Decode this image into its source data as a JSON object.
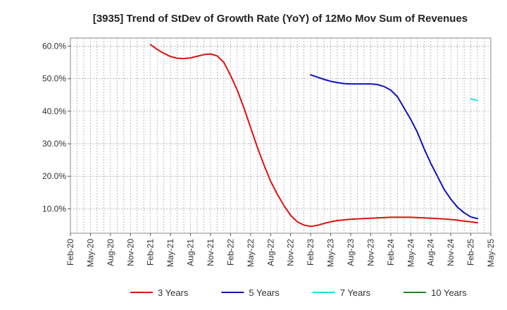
{
  "chart_data": {
    "type": "line",
    "title": "[3935]  Trend of StDev of Growth Rate (YoY) of 12Mo Mov Sum of Revenues",
    "xlabel": "",
    "ylabel": "",
    "ylim": [
      2.5,
      62.5
    ],
    "yticks": [
      10,
      20,
      30,
      40,
      50,
      60
    ],
    "ytick_labels": [
      "10.0%",
      "20.0%",
      "30.0%",
      "40.0%",
      "50.0%",
      "60.0%"
    ],
    "x_tick_labels": [
      "Feb-20",
      "May-20",
      "Aug-20",
      "Nov-20",
      "Feb-21",
      "May-21",
      "Aug-21",
      "Nov-21",
      "Feb-22",
      "May-22",
      "Aug-22",
      "Nov-22",
      "Feb-23",
      "May-23",
      "Aug-23",
      "Nov-23",
      "Feb-24",
      "May-24",
      "Aug-24",
      "Nov-24",
      "Feb-25",
      "May-25"
    ],
    "grid": true,
    "legend_position": "bottom",
    "series": [
      {
        "name": "3 Years",
        "color": "#dd1111",
        "start_month_index": 12,
        "values": [
          60.5,
          59.0,
          57.8,
          56.8,
          56.3,
          56.2,
          56.4,
          56.9,
          57.4,
          57.6,
          57.0,
          55.0,
          51.0,
          46.5,
          41.0,
          35.0,
          29.0,
          23.5,
          18.5,
          14.5,
          11.0,
          8.0,
          6.0,
          5.0,
          4.6,
          4.9,
          5.5,
          6.0,
          6.4,
          6.6,
          6.8,
          6.9,
          7.0,
          7.1,
          7.2,
          7.3,
          7.4,
          7.4,
          7.4,
          7.4,
          7.3,
          7.2,
          7.1,
          7.0,
          6.9,
          6.7,
          6.5,
          6.2,
          6.0,
          5.7
        ]
      },
      {
        "name": "5 Years",
        "color": "#1111bb",
        "start_month_index": 36,
        "values": [
          51.2,
          50.5,
          49.8,
          49.2,
          48.8,
          48.5,
          48.4,
          48.4,
          48.4,
          48.4,
          48.2,
          47.6,
          46.5,
          44.5,
          41.0,
          37.5,
          33.5,
          28.5,
          24.0,
          20.0,
          16.0,
          13.0,
          10.5,
          8.8,
          7.5,
          7.0
        ]
      },
      {
        "name": "7 Years",
        "color": "#22dddd",
        "start_month_index": 60,
        "values": [
          43.8,
          43.3
        ]
      },
      {
        "name": "10 Years",
        "color": "#228822",
        "start_month_index": 0,
        "values": []
      }
    ]
  }
}
